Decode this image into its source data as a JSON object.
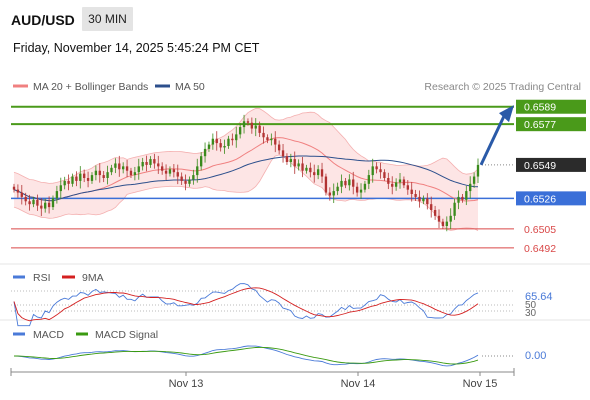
{
  "header": {
    "symbol": "AUD/USD",
    "timeframe": "30 MIN",
    "datetime": "Friday, November 14, 2025 5:45:24 PM CET"
  },
  "legend": {
    "items": [
      {
        "label": "MA 20 + Bollinger Bands",
        "color": "#f08080"
      },
      {
        "label": "MA 50",
        "color": "#2c4f8c"
      }
    ],
    "credit": "Research © 2025 Trading Central"
  },
  "colors": {
    "green_level": "#4a9a1a",
    "blue_level": "#3a6fd8",
    "red_level": "#d94848",
    "bull_candle": "#3a8a1c",
    "bear_candle": "#b23333",
    "bollinger_fill": "#fcdcdc",
    "arrow": "#2a5aa8",
    "price_badge": "#2b2b2b",
    "rsi_line": "#4a7ad8",
    "rsi_ma": "#d42020",
    "macd_line": "#4a7ad8",
    "macd_signal": "#3a9a10"
  },
  "chart_data": [
    {
      "type": "candlestick",
      "title": "AUD/USD",
      "timeframe": "30 MIN",
      "x_tick_labels": [
        "Nov 13",
        "Nov 14",
        "Nov 15"
      ],
      "ylim": [
        0.6485,
        0.6595
      ],
      "last_price": 0.6549,
      "levels": [
        {
          "value": 0.6589,
          "label": "0.6589",
          "kind": "resistance"
        },
        {
          "value": 0.6577,
          "label": "0.6577",
          "kind": "resistance"
        },
        {
          "value": 0.6526,
          "label": "0.6526",
          "kind": "pivot"
        },
        {
          "value": 0.6505,
          "label": "0.6505",
          "kind": "support"
        },
        {
          "value": 0.6492,
          "label": "0.6492",
          "kind": "support"
        }
      ],
      "forecast_arrow": {
        "from": 0.6549,
        "to": 0.6586,
        "direction": "up"
      },
      "candle_closes": [
        0.6532,
        0.653,
        0.6527,
        0.6524,
        0.6522,
        0.6525,
        0.6521,
        0.6519,
        0.6523,
        0.652,
        0.6526,
        0.6531,
        0.6535,
        0.6538,
        0.6536,
        0.6541,
        0.6538,
        0.6543,
        0.654,
        0.6538,
        0.6542,
        0.6545,
        0.6542,
        0.654,
        0.6544,
        0.6547,
        0.655,
        0.6546,
        0.6548,
        0.6545,
        0.6542,
        0.6544,
        0.6548,
        0.6551,
        0.6549,
        0.6553,
        0.655,
        0.6548,
        0.6545,
        0.6543,
        0.6546,
        0.6544,
        0.6541,
        0.6538,
        0.6536,
        0.6539,
        0.6542,
        0.6548,
        0.6555,
        0.656,
        0.6563,
        0.6567,
        0.6564,
        0.6561,
        0.6562,
        0.6567,
        0.6566,
        0.657,
        0.6575,
        0.6579,
        0.6578,
        0.6574,
        0.6576,
        0.6571,
        0.6568,
        0.6566,
        0.6567,
        0.6563,
        0.6559,
        0.6555,
        0.6551,
        0.6553,
        0.6548,
        0.655,
        0.6545,
        0.6547,
        0.6544,
        0.6542,
        0.6546,
        0.6541,
        0.653,
        0.6528,
        0.6531,
        0.6534,
        0.6538,
        0.6535,
        0.6539,
        0.6534,
        0.653,
        0.6532,
        0.6536,
        0.6542,
        0.6548,
        0.6546,
        0.6544,
        0.654,
        0.6536,
        0.6534,
        0.6537,
        0.6539,
        0.6535,
        0.6532,
        0.6529,
        0.6527,
        0.6524,
        0.6526,
        0.6522,
        0.6518,
        0.6514,
        0.651,
        0.6507,
        0.651,
        0.6514,
        0.6523,
        0.6527,
        0.6525,
        0.6531,
        0.6536,
        0.6541,
        0.6549
      ]
    },
    {
      "type": "line",
      "title": "RSI",
      "series": [
        {
          "name": "RSI"
        },
        {
          "name": "9MA"
        }
      ],
      "y_tick_labels": [
        "50",
        "30"
      ],
      "last_value_label": "65.64",
      "ylim": [
        20,
        80
      ]
    },
    {
      "type": "line",
      "title": "MACD",
      "series": [
        {
          "name": "MACD"
        },
        {
          "name": "MACD Signal"
        }
      ],
      "last_value_label": "0.00"
    }
  ]
}
